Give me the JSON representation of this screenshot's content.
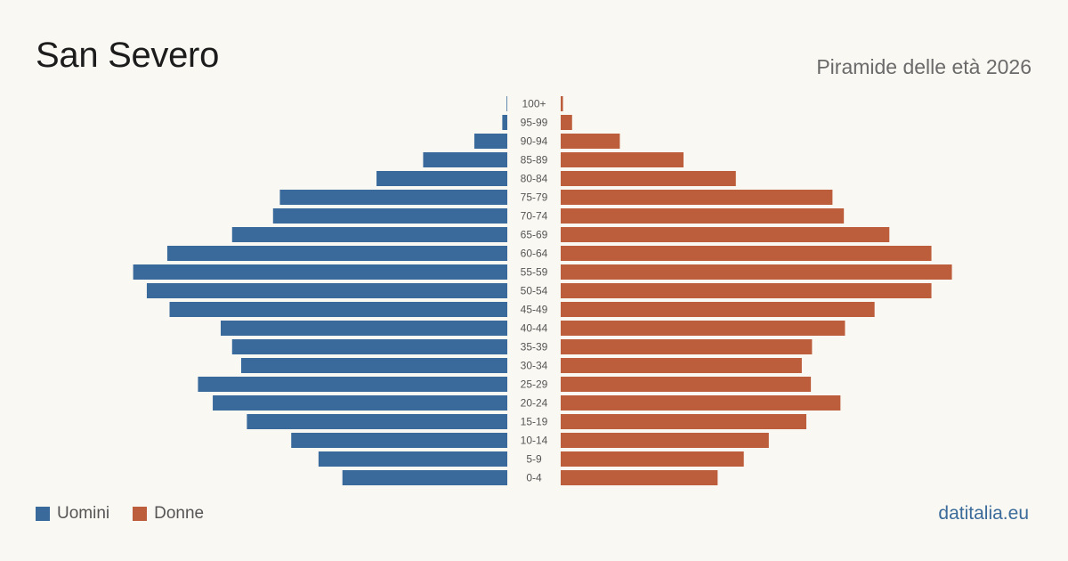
{
  "title": "San Severo",
  "subtitle": "Piramide delle età 2026",
  "brand": "datitalia.eu",
  "colors": {
    "male": "#3a6a9b",
    "female": "#bc5d3b",
    "tick": "#555555"
  },
  "chart_data": {
    "type": "bar",
    "orientation": "horizontal",
    "layout": "population-pyramid",
    "categories": [
      "100+",
      "95-99",
      "90-94",
      "85-89",
      "80-84",
      "75-79",
      "70-74",
      "65-69",
      "60-64",
      "55-59",
      "50-54",
      "45-49",
      "40-44",
      "35-39",
      "30-34",
      "25-29",
      "20-24",
      "15-19",
      "10-14",
      "5-9",
      "0-4"
    ],
    "series": [
      {
        "name": "Uomini",
        "color": "#3a6a9b",
        "values": [
          3,
          22,
          145,
          370,
          575,
          1000,
          1030,
          1210,
          1495,
          1645,
          1585,
          1485,
          1260,
          1210,
          1170,
          1360,
          1295,
          1145,
          950,
          830,
          725
        ]
      },
      {
        "name": "Donne",
        "color": "#bc5d3b",
        "values": [
          10,
          50,
          260,
          540,
          770,
          1195,
          1245,
          1445,
          1630,
          1720,
          1630,
          1380,
          1250,
          1105,
          1060,
          1100,
          1230,
          1080,
          915,
          805,
          690
        ]
      }
    ],
    "xlim": [
      0,
      1800
    ],
    "legend": "bottom-left",
    "grid": false
  }
}
